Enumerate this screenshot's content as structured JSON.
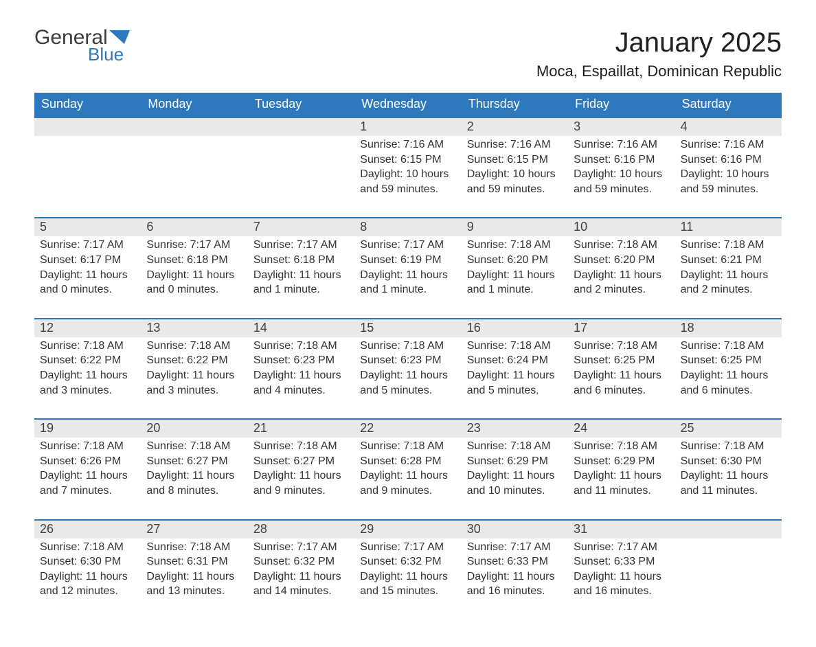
{
  "logo": {
    "text_general": "General",
    "text_blue": "Blue",
    "general_color": "#3a3a3a",
    "blue_color": "#2e79bd",
    "flag_color": "#2e79bd"
  },
  "title": "January 2025",
  "location": "Moca, Espaillat, Dominican Republic",
  "colors": {
    "header_bg": "#2e79bd",
    "header_text": "#ffffff",
    "daynum_bg": "#e9e9e9",
    "daynum_border": "#2e79bd",
    "body_text": "#333333",
    "page_bg": "#ffffff"
  },
  "typography": {
    "title_fontsize": 40,
    "location_fontsize": 22,
    "dayheader_fontsize": 18,
    "daynum_fontsize": 18,
    "cell_fontsize": 16
  },
  "day_names": [
    "Sunday",
    "Monday",
    "Tuesday",
    "Wednesday",
    "Thursday",
    "Friday",
    "Saturday"
  ],
  "weeks": [
    [
      {
        "num": "",
        "sunrise": "",
        "sunset": "",
        "daylight": ""
      },
      {
        "num": "",
        "sunrise": "",
        "sunset": "",
        "daylight": ""
      },
      {
        "num": "",
        "sunrise": "",
        "sunset": "",
        "daylight": ""
      },
      {
        "num": "1",
        "sunrise": "Sunrise: 7:16 AM",
        "sunset": "Sunset: 6:15 PM",
        "daylight": "Daylight: 10 hours and 59 minutes."
      },
      {
        "num": "2",
        "sunrise": "Sunrise: 7:16 AM",
        "sunset": "Sunset: 6:15 PM",
        "daylight": "Daylight: 10 hours and 59 minutes."
      },
      {
        "num": "3",
        "sunrise": "Sunrise: 7:16 AM",
        "sunset": "Sunset: 6:16 PM",
        "daylight": "Daylight: 10 hours and 59 minutes."
      },
      {
        "num": "4",
        "sunrise": "Sunrise: 7:16 AM",
        "sunset": "Sunset: 6:16 PM",
        "daylight": "Daylight: 10 hours and 59 minutes."
      }
    ],
    [
      {
        "num": "5",
        "sunrise": "Sunrise: 7:17 AM",
        "sunset": "Sunset: 6:17 PM",
        "daylight": "Daylight: 11 hours and 0 minutes."
      },
      {
        "num": "6",
        "sunrise": "Sunrise: 7:17 AM",
        "sunset": "Sunset: 6:18 PM",
        "daylight": "Daylight: 11 hours and 0 minutes."
      },
      {
        "num": "7",
        "sunrise": "Sunrise: 7:17 AM",
        "sunset": "Sunset: 6:18 PM",
        "daylight": "Daylight: 11 hours and 1 minute."
      },
      {
        "num": "8",
        "sunrise": "Sunrise: 7:17 AM",
        "sunset": "Sunset: 6:19 PM",
        "daylight": "Daylight: 11 hours and 1 minute."
      },
      {
        "num": "9",
        "sunrise": "Sunrise: 7:18 AM",
        "sunset": "Sunset: 6:20 PM",
        "daylight": "Daylight: 11 hours and 1 minute."
      },
      {
        "num": "10",
        "sunrise": "Sunrise: 7:18 AM",
        "sunset": "Sunset: 6:20 PM",
        "daylight": "Daylight: 11 hours and 2 minutes."
      },
      {
        "num": "11",
        "sunrise": "Sunrise: 7:18 AM",
        "sunset": "Sunset: 6:21 PM",
        "daylight": "Daylight: 11 hours and 2 minutes."
      }
    ],
    [
      {
        "num": "12",
        "sunrise": "Sunrise: 7:18 AM",
        "sunset": "Sunset: 6:22 PM",
        "daylight": "Daylight: 11 hours and 3 minutes."
      },
      {
        "num": "13",
        "sunrise": "Sunrise: 7:18 AM",
        "sunset": "Sunset: 6:22 PM",
        "daylight": "Daylight: 11 hours and 3 minutes."
      },
      {
        "num": "14",
        "sunrise": "Sunrise: 7:18 AM",
        "sunset": "Sunset: 6:23 PM",
        "daylight": "Daylight: 11 hours and 4 minutes."
      },
      {
        "num": "15",
        "sunrise": "Sunrise: 7:18 AM",
        "sunset": "Sunset: 6:23 PM",
        "daylight": "Daylight: 11 hours and 5 minutes."
      },
      {
        "num": "16",
        "sunrise": "Sunrise: 7:18 AM",
        "sunset": "Sunset: 6:24 PM",
        "daylight": "Daylight: 11 hours and 5 minutes."
      },
      {
        "num": "17",
        "sunrise": "Sunrise: 7:18 AM",
        "sunset": "Sunset: 6:25 PM",
        "daylight": "Daylight: 11 hours and 6 minutes."
      },
      {
        "num": "18",
        "sunrise": "Sunrise: 7:18 AM",
        "sunset": "Sunset: 6:25 PM",
        "daylight": "Daylight: 11 hours and 6 minutes."
      }
    ],
    [
      {
        "num": "19",
        "sunrise": "Sunrise: 7:18 AM",
        "sunset": "Sunset: 6:26 PM",
        "daylight": "Daylight: 11 hours and 7 minutes."
      },
      {
        "num": "20",
        "sunrise": "Sunrise: 7:18 AM",
        "sunset": "Sunset: 6:27 PM",
        "daylight": "Daylight: 11 hours and 8 minutes."
      },
      {
        "num": "21",
        "sunrise": "Sunrise: 7:18 AM",
        "sunset": "Sunset: 6:27 PM",
        "daylight": "Daylight: 11 hours and 9 minutes."
      },
      {
        "num": "22",
        "sunrise": "Sunrise: 7:18 AM",
        "sunset": "Sunset: 6:28 PM",
        "daylight": "Daylight: 11 hours and 9 minutes."
      },
      {
        "num": "23",
        "sunrise": "Sunrise: 7:18 AM",
        "sunset": "Sunset: 6:29 PM",
        "daylight": "Daylight: 11 hours and 10 minutes."
      },
      {
        "num": "24",
        "sunrise": "Sunrise: 7:18 AM",
        "sunset": "Sunset: 6:29 PM",
        "daylight": "Daylight: 11 hours and 11 minutes."
      },
      {
        "num": "25",
        "sunrise": "Sunrise: 7:18 AM",
        "sunset": "Sunset: 6:30 PM",
        "daylight": "Daylight: 11 hours and 11 minutes."
      }
    ],
    [
      {
        "num": "26",
        "sunrise": "Sunrise: 7:18 AM",
        "sunset": "Sunset: 6:30 PM",
        "daylight": "Daylight: 11 hours and 12 minutes."
      },
      {
        "num": "27",
        "sunrise": "Sunrise: 7:18 AM",
        "sunset": "Sunset: 6:31 PM",
        "daylight": "Daylight: 11 hours and 13 minutes."
      },
      {
        "num": "28",
        "sunrise": "Sunrise: 7:17 AM",
        "sunset": "Sunset: 6:32 PM",
        "daylight": "Daylight: 11 hours and 14 minutes."
      },
      {
        "num": "29",
        "sunrise": "Sunrise: 7:17 AM",
        "sunset": "Sunset: 6:32 PM",
        "daylight": "Daylight: 11 hours and 15 minutes."
      },
      {
        "num": "30",
        "sunrise": "Sunrise: 7:17 AM",
        "sunset": "Sunset: 6:33 PM",
        "daylight": "Daylight: 11 hours and 16 minutes."
      },
      {
        "num": "31",
        "sunrise": "Sunrise: 7:17 AM",
        "sunset": "Sunset: 6:33 PM",
        "daylight": "Daylight: 11 hours and 16 minutes."
      },
      {
        "num": "",
        "sunrise": "",
        "sunset": "",
        "daylight": ""
      }
    ]
  ]
}
